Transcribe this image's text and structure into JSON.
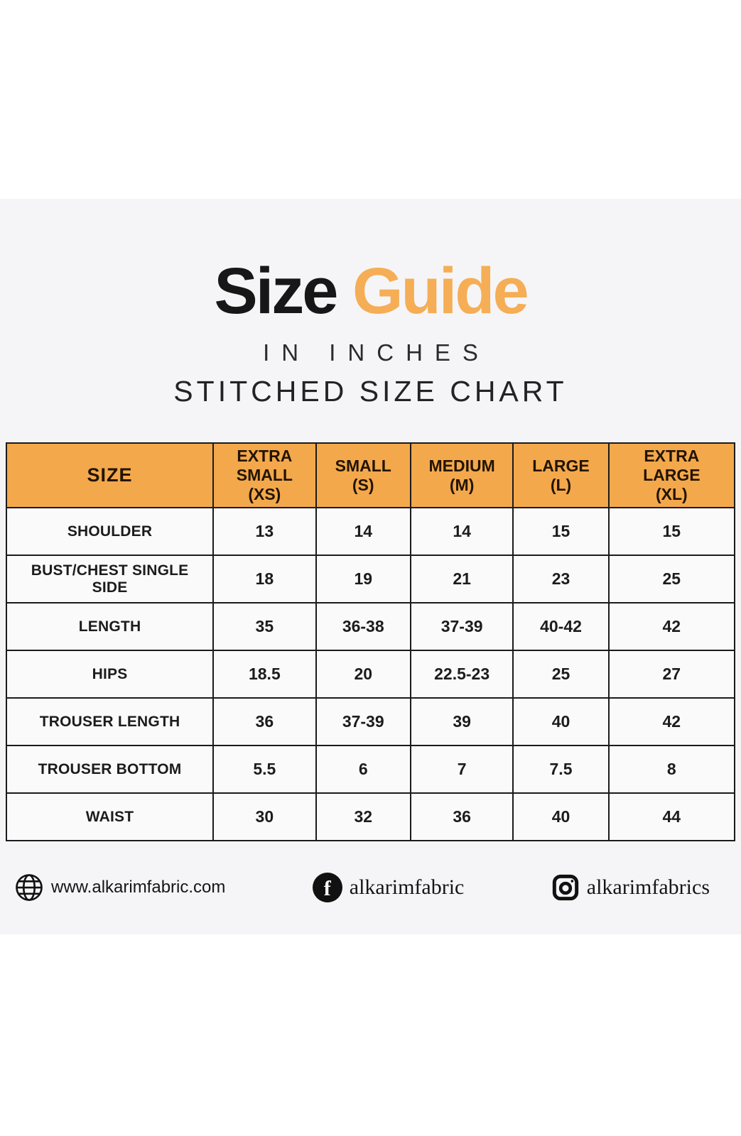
{
  "title": {
    "word_black": "Size",
    "word_orange": "Guide"
  },
  "subtitle_units": "IN INCHES",
  "subtitle_chart": "STITCHED SIZE CHART",
  "colors": {
    "title_orange": "#F5AE55",
    "header_orange": "#F3A84C",
    "band_gray": "#f5f5f7",
    "ink": "#1b1b1b"
  },
  "chart_data": {
    "type": "table",
    "title": "Size Guide — Stitched Size Chart (inches)",
    "columns": [
      "SIZE",
      "EXTRA\nSMALL (XS)",
      "SMALL\n(S)",
      "MEDIUM\n(M)",
      "LARGE\n(L)",
      "EXTRA LARGE\n(XL)"
    ],
    "rows": [
      {
        "label": "SHOULDER",
        "values": [
          "13",
          "14",
          "14",
          "15",
          "15"
        ]
      },
      {
        "label": "BUST/CHEST SINGLE SIDE",
        "values": [
          "18",
          "19",
          "21",
          "23",
          "25"
        ]
      },
      {
        "label": "LENGTH",
        "values": [
          "35",
          "36-38",
          "37-39",
          "40-42",
          "42"
        ]
      },
      {
        "label": "HIPS",
        "values": [
          "18.5",
          "20",
          "22.5-23",
          "25",
          "27"
        ]
      },
      {
        "label": "TROUSER LENGTH",
        "values": [
          "36",
          "37-39",
          "39",
          "40",
          "42"
        ]
      },
      {
        "label": "TROUSER BOTTOM",
        "values": [
          "5.5",
          "6",
          "7",
          "7.5",
          "8"
        ]
      },
      {
        "label": "WAIST",
        "values": [
          "30",
          "32",
          "36",
          "40",
          "44"
        ]
      }
    ]
  },
  "footer": {
    "website": "www.alkarimfabric.com",
    "facebook_handle": "alkarimfabric",
    "instagram_handle": "alkarimfabrics"
  }
}
